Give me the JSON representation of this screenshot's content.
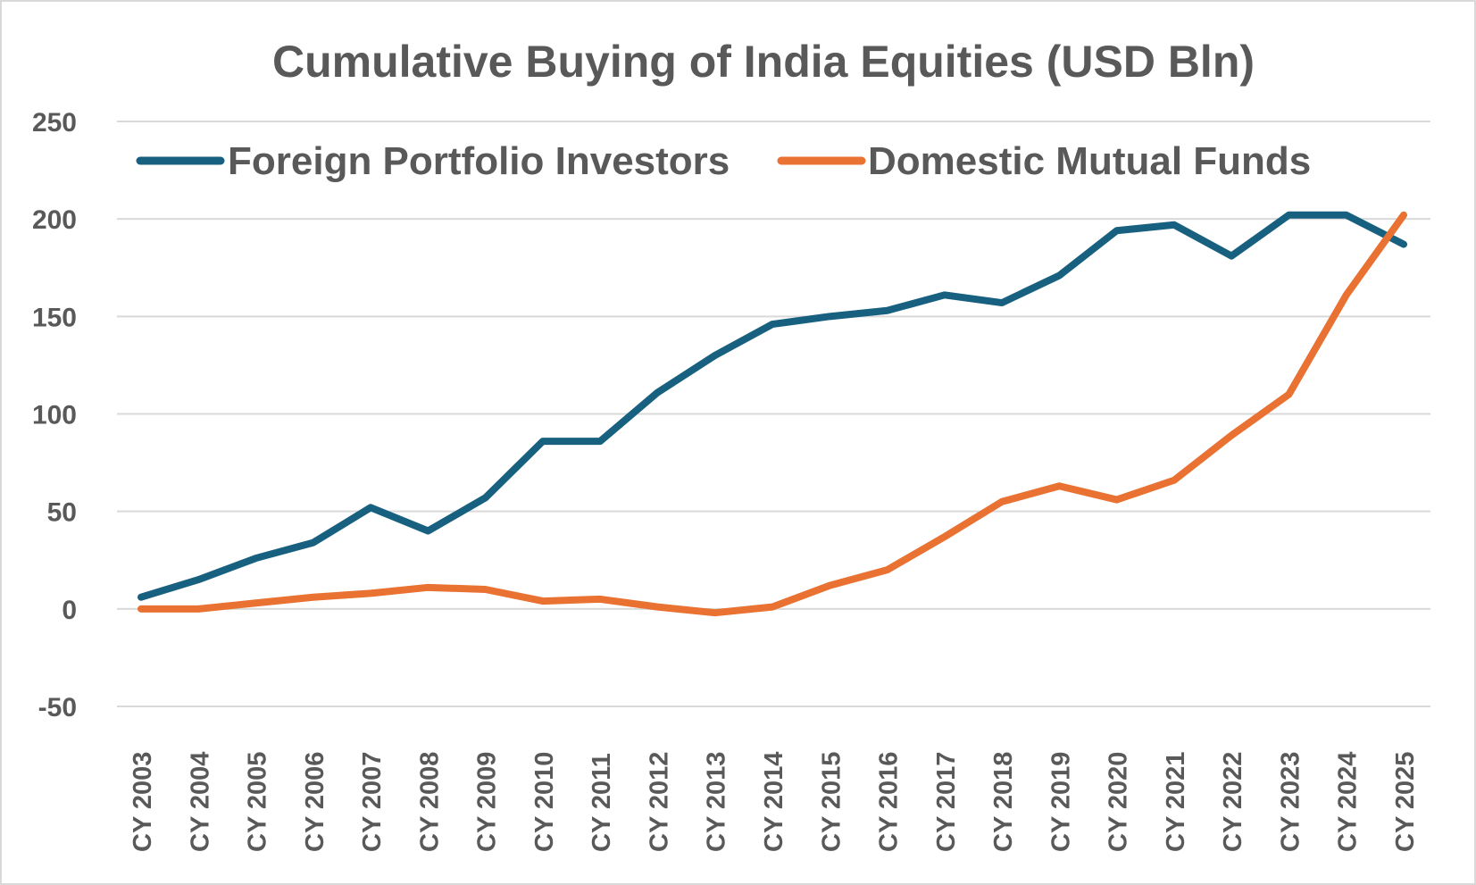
{
  "chart_data": {
    "type": "line",
    "title": "Cumulative Buying of India Equities (USD Bln)",
    "xlabel": "",
    "ylabel": "",
    "ylim": [
      -50,
      250
    ],
    "yticks": [
      "-50",
      "0",
      "50",
      "100",
      "150",
      "200",
      "250"
    ],
    "grid": true,
    "legend_position": "top",
    "categories": [
      "CY 2003",
      "CY 2004",
      "CY 2005",
      "CY 2006",
      "CY 2007",
      "CY 2008",
      "CY 2009",
      "CY 2010",
      "CY 2011",
      "CY 2012",
      "CY 2013",
      "CY 2014",
      "CY 2015",
      "CY 2016",
      "CY 2017",
      "CY 2018",
      "CY 2019",
      "CY 2020",
      "CY 2021",
      "CY 2022",
      "CY 2023",
      "CY 2024",
      "CY 2025"
    ],
    "series": [
      {
        "name": "Foreign Portfolio Investors",
        "color": "#17607f",
        "values": [
          6,
          15,
          26,
          34,
          52,
          40,
          57,
          86,
          86,
          111,
          130,
          146,
          150,
          153,
          161,
          157,
          171,
          194,
          197,
          181,
          202,
          202,
          187
        ]
      },
      {
        "name": "Domestic Mutual Funds",
        "color": "#e97132",
        "values": [
          0,
          0,
          3,
          6,
          8,
          11,
          10,
          4,
          5,
          1,
          -2,
          1,
          12,
          20,
          37,
          55,
          63,
          56,
          66,
          89,
          110,
          161,
          202
        ]
      }
    ]
  }
}
